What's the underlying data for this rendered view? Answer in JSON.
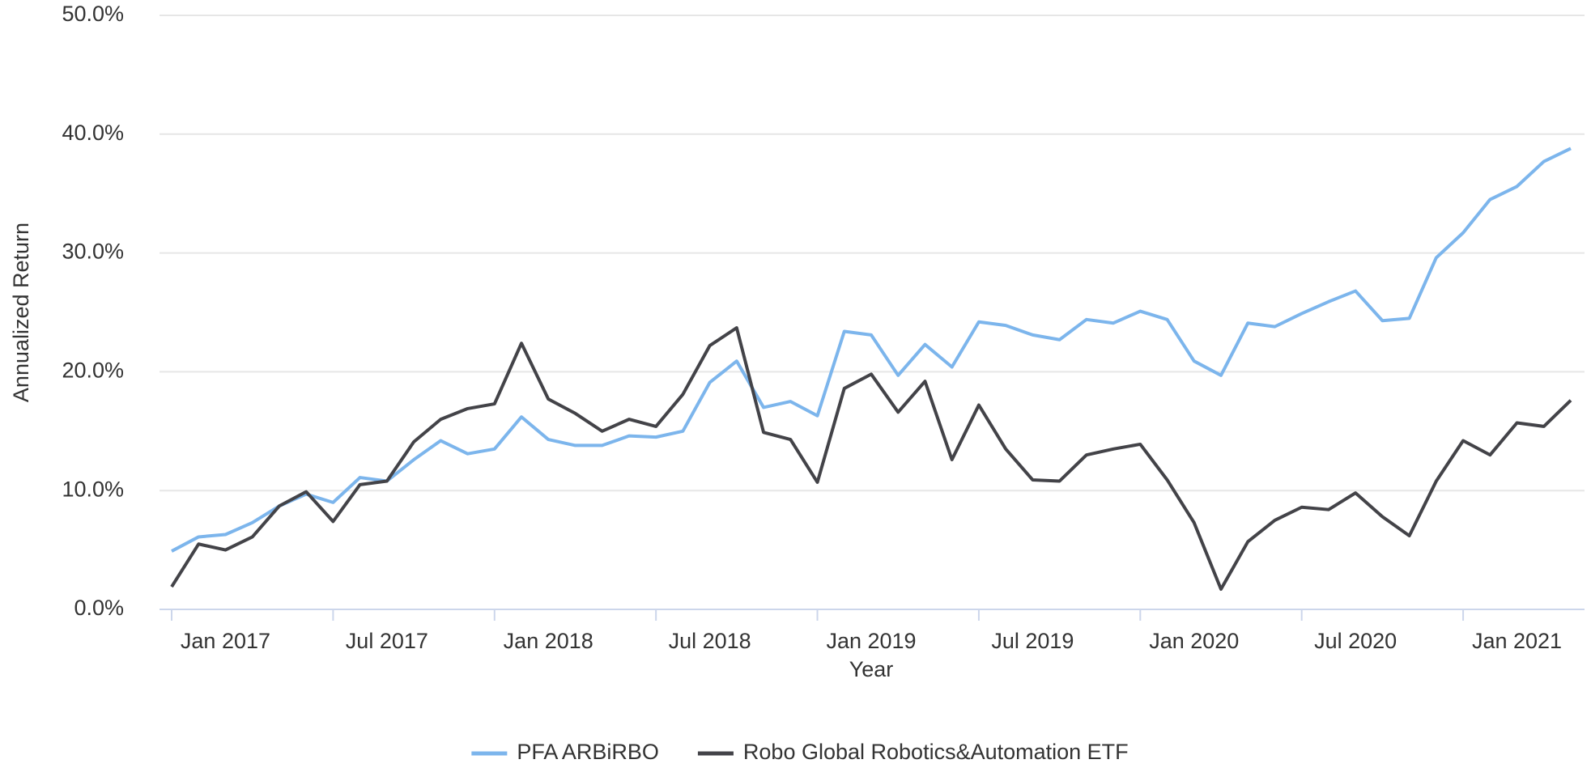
{
  "chart_data": {
    "type": "line",
    "x_label": "Year",
    "y_label": "Annualized Return",
    "categories": [
      null,
      null,
      "Jan 2017",
      null,
      null,
      null,
      null,
      null,
      "Jul 2017",
      null,
      null,
      null,
      null,
      null,
      "Jan 2018",
      null,
      null,
      null,
      null,
      null,
      "Jul 2018",
      null,
      null,
      null,
      null,
      null,
      "Jan 2019",
      null,
      null,
      null,
      null,
      null,
      "Jul 2019",
      null,
      null,
      null,
      null,
      null,
      "Jan 2020",
      null,
      null,
      null,
      null,
      null,
      "Jul 2020",
      null,
      null,
      null,
      null,
      null,
      "Jan 2021",
      null,
      null
    ],
    "series": [
      {
        "name": "PFA ARBiRBO",
        "color": "#7cb5ec",
        "values": [
          4.9,
          6.1,
          6.3,
          7.3,
          8.7,
          9.7,
          9.0,
          11.1,
          10.8,
          12.6,
          14.2,
          13.1,
          13.5,
          16.2,
          14.3,
          13.8,
          13.8,
          14.6,
          14.5,
          15.0,
          19.1,
          20.9,
          17.0,
          17.5,
          16.3,
          23.4,
          23.1,
          19.7,
          22.3,
          20.4,
          24.2,
          23.9,
          23.1,
          22.7,
          24.4,
          24.1,
          25.1,
          24.4,
          20.9,
          19.7,
          24.1,
          23.8,
          24.9,
          25.9,
          26.8,
          24.3,
          24.5,
          29.6,
          31.7,
          34.5,
          35.6,
          37.7,
          38.8
        ]
      },
      {
        "name": "Robo Global Robotics&Automation ETF",
        "color": "#434348",
        "values": [
          1.9,
          5.5,
          5.0,
          6.1,
          8.7,
          9.9,
          7.4,
          10.5,
          10.8,
          14.1,
          16.0,
          16.9,
          17.3,
          22.4,
          17.7,
          16.5,
          15.0,
          16.0,
          15.4,
          18.1,
          22.2,
          23.7,
          14.9,
          14.3,
          10.7,
          18.6,
          19.8,
          16.6,
          19.2,
          12.6,
          17.2,
          13.5,
          10.9,
          10.8,
          13.0,
          13.5,
          13.9,
          10.9,
          7.3,
          1.7,
          5.7,
          7.5,
          8.6,
          8.4,
          9.8,
          7.8,
          6.2,
          10.8,
          14.2,
          13.0,
          15.7,
          15.4,
          17.6
        ]
      }
    ],
    "ylim": [
      0,
      50
    ],
    "yticks": [
      {
        "value": 0,
        "label": "0.0%"
      },
      {
        "value": 10,
        "label": "10.0%"
      },
      {
        "value": 20,
        "label": "20.0%"
      },
      {
        "value": 30,
        "label": "30.0%"
      },
      {
        "value": 40,
        "label": "40.0%"
      },
      {
        "value": 50,
        "label": "50.0%"
      }
    ],
    "grid": true,
    "legend": "bottom"
  }
}
